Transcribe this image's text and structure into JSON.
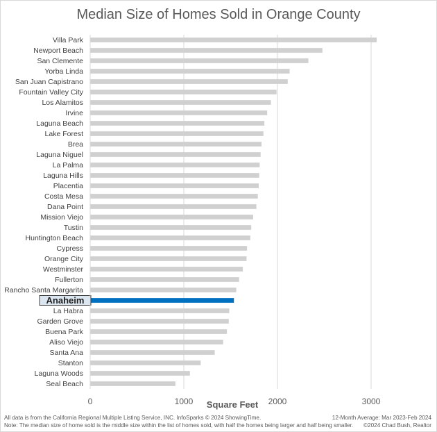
{
  "chart_data": {
    "type": "bar",
    "orientation": "horizontal",
    "title": "Median Size of Homes Sold in Orange County",
    "xlabel": "Square Feet",
    "ylabel": "",
    "xlim": [
      0,
      3300
    ],
    "xticks": [
      0,
      1000,
      2000,
      3000
    ],
    "grid": true,
    "highlight": "Anaheim",
    "colors": {
      "bar": "#d0d0d0",
      "highlight": "#0070c0",
      "highlight_label_bg": "#dce6f1"
    },
    "categories": [
      "Villa Park",
      "Newport Beach",
      "San Clemente",
      "Yorba Linda",
      "San Juan Capistrano",
      "Fountain Valley City",
      "Los Alamitos",
      "Irvine",
      "Laguna Beach",
      "Lake Forest",
      "Brea",
      "Laguna Niguel",
      "La Palma",
      "Laguna Hills",
      "Placentia",
      "Costa Mesa",
      "Dana Point",
      "Mission Viejo",
      "Tustin",
      "Huntington Beach",
      "Cypress",
      "Orange City",
      "Westminster",
      "Fullerton",
      "Rancho Santa Margarita",
      "Anaheim",
      "La Habra",
      "Garden Grove",
      "Buena Park",
      "Aliso Viejo",
      "Santa Ana",
      "Stanton",
      "Laguna Woods",
      "Seal Beach"
    ],
    "values": [
      3060,
      2480,
      2330,
      2130,
      2110,
      1990,
      1930,
      1890,
      1860,
      1850,
      1830,
      1820,
      1810,
      1805,
      1800,
      1790,
      1775,
      1740,
      1720,
      1710,
      1675,
      1670,
      1630,
      1590,
      1560,
      1535,
      1485,
      1480,
      1460,
      1420,
      1330,
      1180,
      1065,
      910
    ]
  },
  "footer": {
    "source": "All data is from the California Regional Multiple Listing Service, INC. InfoSparks © 2024 ShowingTime.",
    "note": "Note: The median size of home sold is the middle size within the list of homes sold, with half the homes being larger and half being smaller.",
    "period": "12-Month Average: Mar 2023-Feb 2024",
    "credit": "©2024 Chad Bush, Realtor"
  }
}
